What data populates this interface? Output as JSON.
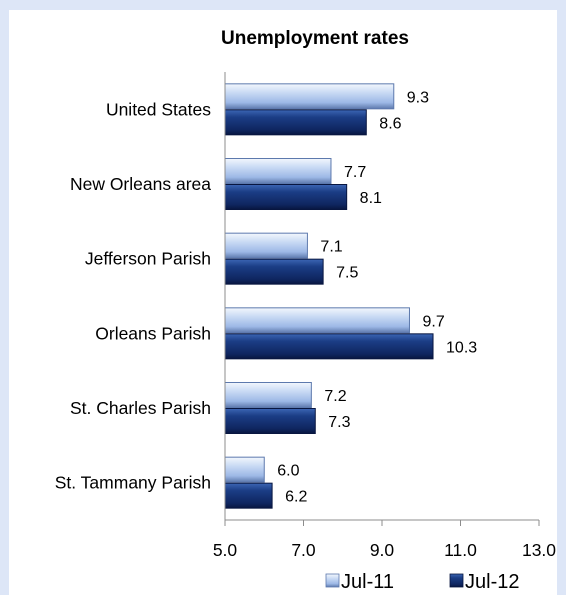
{
  "chart_data": {
    "type": "bar",
    "orientation": "horizontal",
    "title": "Unemployment rates",
    "xlabel": "",
    "ylabel": "",
    "categories": [
      "United States",
      "New Orleans area",
      "Jefferson Parish",
      "Orleans Parish",
      "St. Charles Parish",
      "St. Tammany Parish"
    ],
    "series": [
      {
        "name": "Jul-11",
        "values": [
          9.3,
          7.7,
          7.1,
          9.7,
          7.2,
          6.0
        ],
        "labels": [
          "9.3",
          "7.7",
          "7.1",
          "9.7",
          "7.2",
          "6.0"
        ],
        "color": "#a9c3ec"
      },
      {
        "name": "Jul-12",
        "values": [
          8.6,
          8.1,
          7.5,
          10.3,
          7.3,
          6.2
        ],
        "labels": [
          "8.6",
          "8.1",
          "7.5",
          "10.3",
          "7.3",
          "6.2"
        ],
        "color": "#14306e"
      }
    ],
    "xlim": [
      5.0,
      13.0
    ],
    "xticks": [
      "5.0",
      "7.0",
      "9.0",
      "11.0",
      "13.0"
    ],
    "grid": false,
    "legend_position": "bottom-right"
  }
}
